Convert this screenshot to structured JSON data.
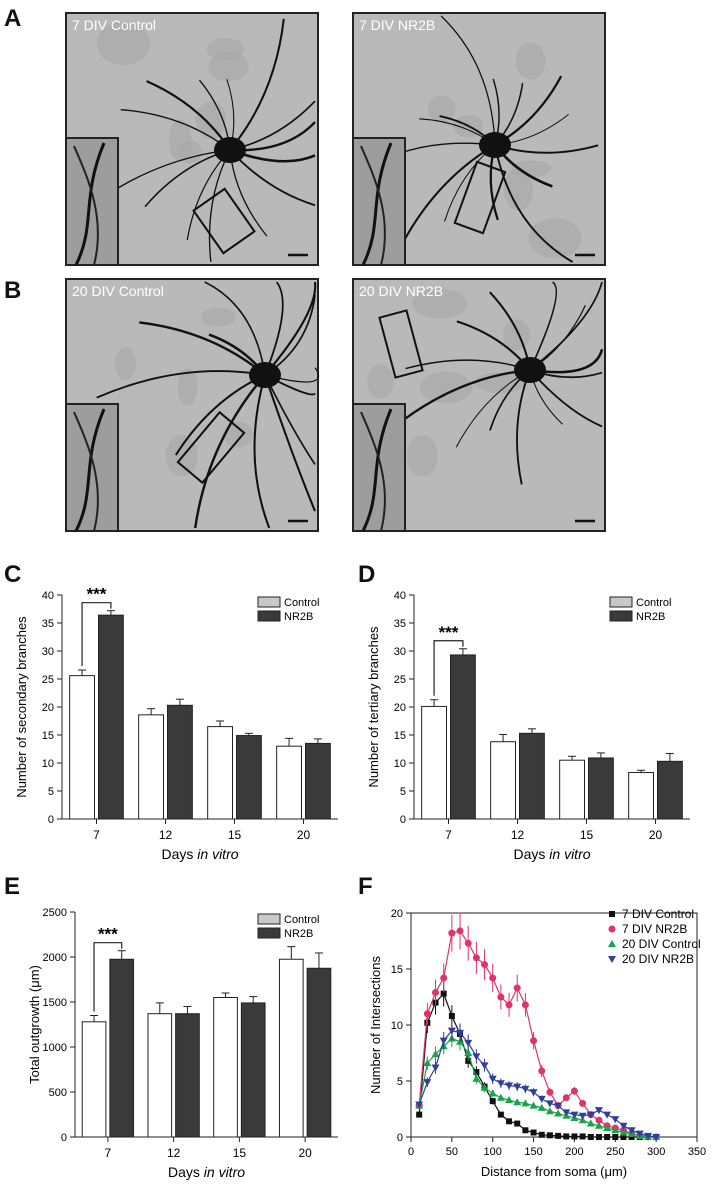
{
  "panel_letters": [
    "A",
    "B",
    "C",
    "D",
    "E",
    "F"
  ],
  "micrographs": [
    {
      "label": "7 DIV Control"
    },
    {
      "label": "7 DIV NR2B"
    },
    {
      "label": "20 DIV Control"
    },
    {
      "label": "20 DIV NR2B"
    }
  ],
  "colors": {
    "control_bar": "#ffffff",
    "nr2b_bar": "#3a3a3a",
    "legend_control": "#c8c8c8",
    "div7_control": "#111111",
    "div7_nr2b": "#e0336a",
    "div20_control": "#1aa34a",
    "div20_nr2b": "#2f3f9a"
  },
  "chart_data": [
    {
      "panel": "C",
      "type": "bar",
      "categories": [
        "7",
        "12",
        "15",
        "20"
      ],
      "xlabel_parts": [
        "Days ",
        "in vitro"
      ],
      "ylabel": "Number of secondary branches",
      "ylim": [
        0,
        40
      ],
      "yticks": [
        0,
        5,
        10,
        15,
        20,
        25,
        30,
        35,
        40
      ],
      "legend": [
        "Control",
        "NR2B"
      ],
      "legend_position": "top-right",
      "series": [
        {
          "name": "Control",
          "values": [
            25.6,
            18.6,
            16.5,
            13.0
          ],
          "errors": [
            1.0,
            1.1,
            1.0,
            1.4
          ]
        },
        {
          "name": "NR2B",
          "values": [
            36.4,
            20.3,
            14.9,
            13.5
          ],
          "errors": [
            0.8,
            1.1,
            0.4,
            0.8
          ]
        }
      ],
      "significance": {
        "label": "***",
        "category_index": 0
      }
    },
    {
      "panel": "D",
      "type": "bar",
      "categories": [
        "7",
        "12",
        "15",
        "20"
      ],
      "xlabel_parts": [
        "Days ",
        "in vitro"
      ],
      "ylabel": "Number of tertiary branches",
      "ylim": [
        0,
        40
      ],
      "yticks": [
        0,
        5,
        10,
        15,
        20,
        25,
        30,
        35,
        40
      ],
      "legend": [
        "Control",
        "NR2B"
      ],
      "legend_position": "top-right",
      "series": [
        {
          "name": "Control",
          "values": [
            20.1,
            13.8,
            10.5,
            8.3
          ],
          "errors": [
            1.2,
            1.3,
            0.7,
            0.4
          ]
        },
        {
          "name": "NR2B",
          "values": [
            29.3,
            15.3,
            10.9,
            10.3
          ],
          "errors": [
            1.1,
            0.8,
            0.9,
            1.4
          ]
        }
      ],
      "significance": {
        "label": "***",
        "category_index": 0
      }
    },
    {
      "panel": "E",
      "type": "bar",
      "categories": [
        "7",
        "12",
        "15",
        "20"
      ],
      "xlabel_parts": [
        "Days ",
        "in vitro"
      ],
      "ylabel": "Total outgrowth  (μm)",
      "ylim": [
        0,
        2500
      ],
      "yticks": [
        0,
        500,
        1000,
        1500,
        2000,
        2500
      ],
      "legend": [
        "Control",
        "NR2B"
      ],
      "legend_position": "top-right",
      "series": [
        {
          "name": "Control",
          "values": [
            1280,
            1370,
            1550,
            1975
          ],
          "errors": [
            70,
            120,
            50,
            140
          ]
        },
        {
          "name": "NR2B",
          "values": [
            1975,
            1370,
            1490,
            1875
          ],
          "errors": [
            95,
            80,
            70,
            170
          ]
        }
      ],
      "significance": {
        "label": "***",
        "category_index": 0
      }
    },
    {
      "panel": "F",
      "type": "line",
      "xlabel": "Distance from soma (μm)",
      "ylabel": "Number of Intersections",
      "xlim": [
        0,
        350
      ],
      "ylim": [
        0,
        20
      ],
      "xticks": [
        0,
        50,
        100,
        150,
        200,
        250,
        300,
        350
      ],
      "yticks": [
        0,
        5,
        10,
        15,
        20
      ],
      "legend_position": "top-right",
      "series": [
        {
          "name": "7 DIV Control",
          "marker": "square",
          "x": [
            10,
            20,
            30,
            40,
            50,
            60,
            70,
            80,
            90,
            100,
            110,
            120,
            130,
            140,
            150,
            160,
            170,
            180,
            190,
            200,
            210,
            220,
            230,
            240,
            250,
            260,
            270,
            280,
            290,
            300
          ],
          "y": [
            2.0,
            10.2,
            12.0,
            12.8,
            10.8,
            9.2,
            6.8,
            5.8,
            4.5,
            3.2,
            2.0,
            1.4,
            1.2,
            0.6,
            0.4,
            0.2,
            0.15,
            0.1,
            0.05,
            0.05,
            0.05,
            0.0,
            0.0,
            0.0,
            0.0,
            0.0,
            0.0,
            0.0,
            0.0,
            0.0
          ]
        },
        {
          "name": "7 DIV NR2B",
          "marker": "circle",
          "x": [
            10,
            20,
            30,
            40,
            50,
            60,
            70,
            80,
            90,
            100,
            110,
            120,
            130,
            140,
            150,
            160,
            170,
            180,
            190,
            200,
            210,
            220,
            230,
            240,
            250,
            260,
            270,
            280,
            290,
            300
          ],
          "y": [
            2.8,
            11.0,
            12.9,
            14.2,
            18.2,
            18.4,
            17.3,
            16.0,
            15.4,
            14.2,
            12.5,
            11.8,
            13.3,
            11.8,
            8.6,
            5.9,
            4.0,
            2.8,
            3.5,
            4.1,
            3.0,
            2.0,
            1.5,
            1.0,
            0.8,
            0.6,
            0.3,
            0.1,
            0.0,
            0.0
          ]
        },
        {
          "name": "20 DIV Control",
          "marker": "triangle-up",
          "x": [
            10,
            20,
            30,
            40,
            50,
            60,
            70,
            80,
            90,
            100,
            110,
            120,
            130,
            140,
            150,
            160,
            170,
            180,
            190,
            200,
            210,
            220,
            230,
            240,
            250,
            260,
            270,
            280,
            290,
            300
          ],
          "y": [
            2.8,
            6.6,
            7.4,
            8.1,
            8.8,
            8.5,
            7.5,
            5.2,
            4.4,
            3.9,
            3.5,
            3.3,
            3.1,
            3.0,
            2.8,
            2.6,
            2.3,
            2.1,
            1.9,
            1.7,
            1.5,
            1.2,
            1.0,
            0.8,
            0.6,
            0.4,
            0.3,
            0.1,
            0.0,
            0.0
          ]
        },
        {
          "name": "20 DIV NR2B",
          "marker": "triangle-down",
          "x": [
            10,
            20,
            30,
            40,
            50,
            60,
            70,
            80,
            90,
            100,
            110,
            120,
            130,
            140,
            150,
            160,
            170,
            180,
            190,
            200,
            210,
            220,
            230,
            240,
            250,
            260,
            270,
            280,
            290,
            300
          ],
          "y": [
            2.9,
            4.9,
            6.2,
            8.6,
            9.5,
            9.3,
            8.4,
            7.2,
            6.4,
            5.2,
            4.8,
            4.6,
            4.5,
            4.3,
            4.0,
            3.4,
            3.0,
            2.8,
            2.2,
            2.0,
            1.9,
            2.0,
            2.4,
            2.0,
            1.6,
            1.0,
            0.6,
            0.3,
            0.1,
            0.0
          ]
        }
      ]
    }
  ]
}
